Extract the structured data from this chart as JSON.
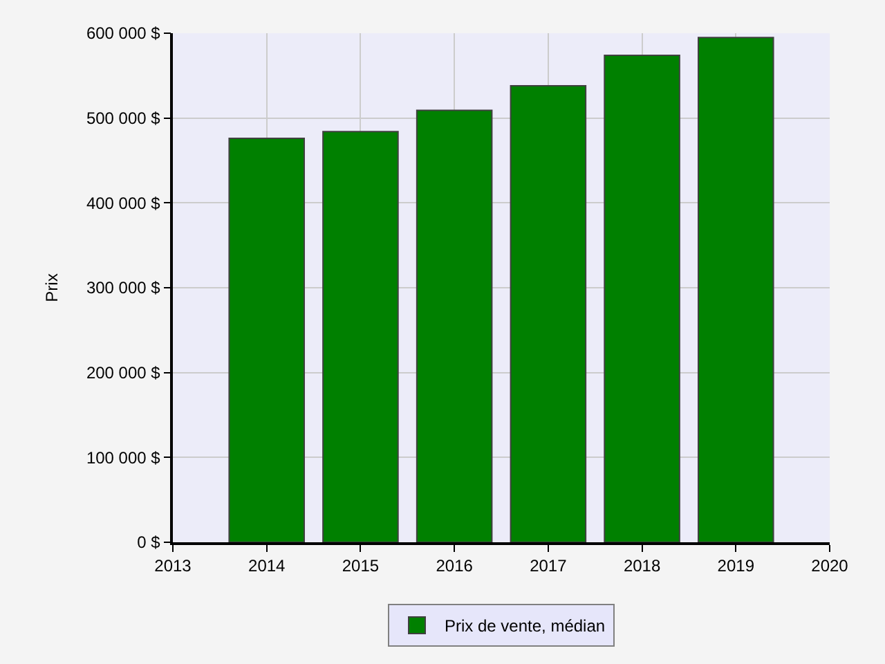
{
  "chart_data": {
    "type": "bar",
    "ylabel": "Prix",
    "x": [
      2014,
      2015,
      2016,
      2017,
      2018,
      2019
    ],
    "series": [
      {
        "name": "Prix de vente, médian",
        "color": "#008000",
        "values": [
          476000,
          484000,
          509000,
          538000,
          574000,
          595000
        ]
      }
    ],
    "xlim": [
      2013,
      2020
    ],
    "xticks": [
      2013,
      2014,
      2015,
      2016,
      2017,
      2018,
      2019,
      2020
    ],
    "ylim": [
      0,
      600000
    ],
    "yticks": [
      {
        "value": 0,
        "label": "0 $"
      },
      {
        "value": 100000,
        "label": "100 000 $"
      },
      {
        "value": 200000,
        "label": "200 000 $"
      },
      {
        "value": 300000,
        "label": "300 000 $"
      },
      {
        "value": 400000,
        "label": "400 000 $"
      },
      {
        "value": 500000,
        "label": "500 000 $"
      },
      {
        "value": 600000,
        "label": "600 000 $"
      }
    ],
    "grid": true,
    "legend": "bottom"
  }
}
